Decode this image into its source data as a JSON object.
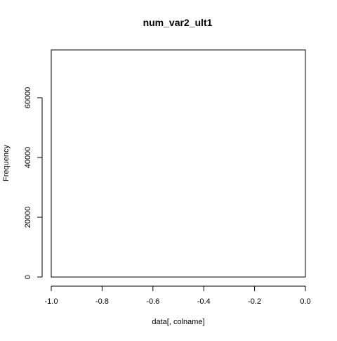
{
  "chart_data": {
    "type": "bar",
    "title": "num_var2_ult1",
    "xlabel": "data[, colname]",
    "ylabel": "Frequency",
    "xlim": [
      -1.0,
      0.0
    ],
    "ylim": [
      0,
      76000
    ],
    "x_ticks": [
      -1.0,
      -0.8,
      -0.6,
      -0.4,
      -0.2,
      0.0
    ],
    "x_tick_labels": [
      "-1.0",
      "-0.8",
      "-0.6",
      "-0.4",
      "-0.2",
      "0.0"
    ],
    "y_ticks": [
      0,
      20000,
      40000,
      60000
    ],
    "y_tick_labels": [
      "0",
      "20000",
      "40000",
      "60000"
    ],
    "bars": [],
    "grid": false,
    "legend": "none"
  }
}
